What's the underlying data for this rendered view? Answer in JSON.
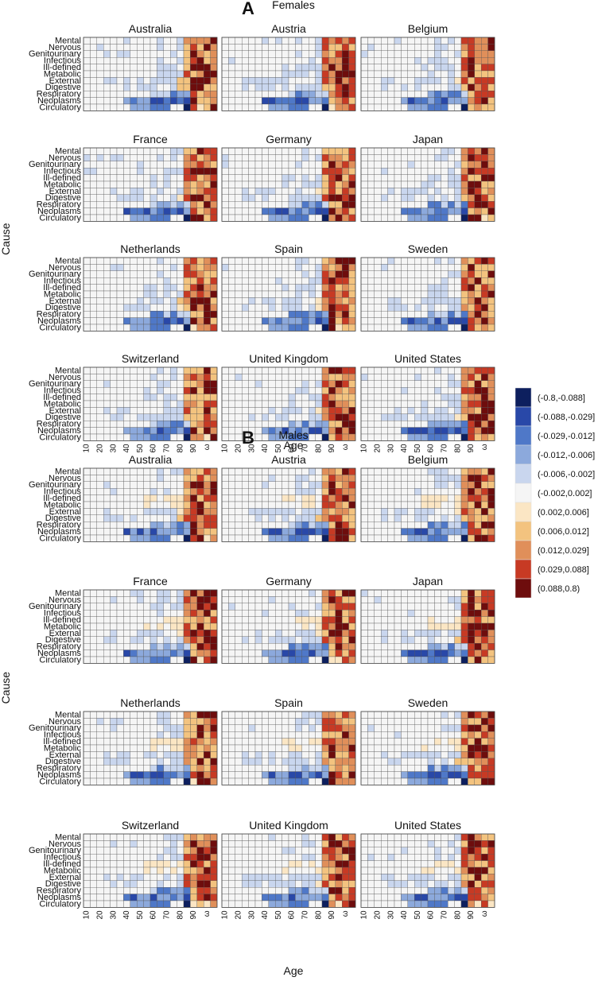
{
  "chart_data": {
    "type": "heatmap",
    "ages": [
      "10",
      "20",
      "30",
      "40",
      "50",
      "60",
      "70",
      "80",
      "90",
      "ω"
    ],
    "causes": [
      "Mental",
      "Nervous",
      "Genitourinary",
      "Infectious",
      "Ill-defined",
      "Metabolic",
      "External",
      "Digestive",
      "Respiratory",
      "Neoplasms",
      "Circulatory"
    ],
    "xlabel": "Age",
    "ylabel": "Cause",
    "countries": [
      "Australia",
      "Austria",
      "Belgium",
      "France",
      "Germany",
      "Japan",
      "Netherlands",
      "Spain",
      "Sweden",
      "Switzerland",
      "United Kingdom",
      "United States"
    ],
    "legend": {
      "bins": [
        "(-0.8,-0.088]",
        "(-0.088,-0.029]",
        "(-0.029,-0.012]",
        "(-0.012,-0.006]",
        "(-0.006,-0.002]",
        "(-0.002,0.002]",
        "(0.002,0.006]",
        "(0.006,0.012]",
        "(0.012,0.029]",
        "(0.029,0.088]",
        "(0.088,0.8)"
      ],
      "colors": [
        "#0d1f5e",
        "#2948a8",
        "#4f78c8",
        "#8ca9dc",
        "#c9d6ee",
        "#f5f5f5",
        "#fbe6c4",
        "#f3c37f",
        "#e08f5a",
        "#c73a24",
        "#6e0d0d"
      ]
    },
    "panels": [
      {
        "letter": "A",
        "title": "Females",
        "sex": "female"
      },
      {
        "letter": "B",
        "title": "Males",
        "sex": "male"
      }
    ]
  }
}
